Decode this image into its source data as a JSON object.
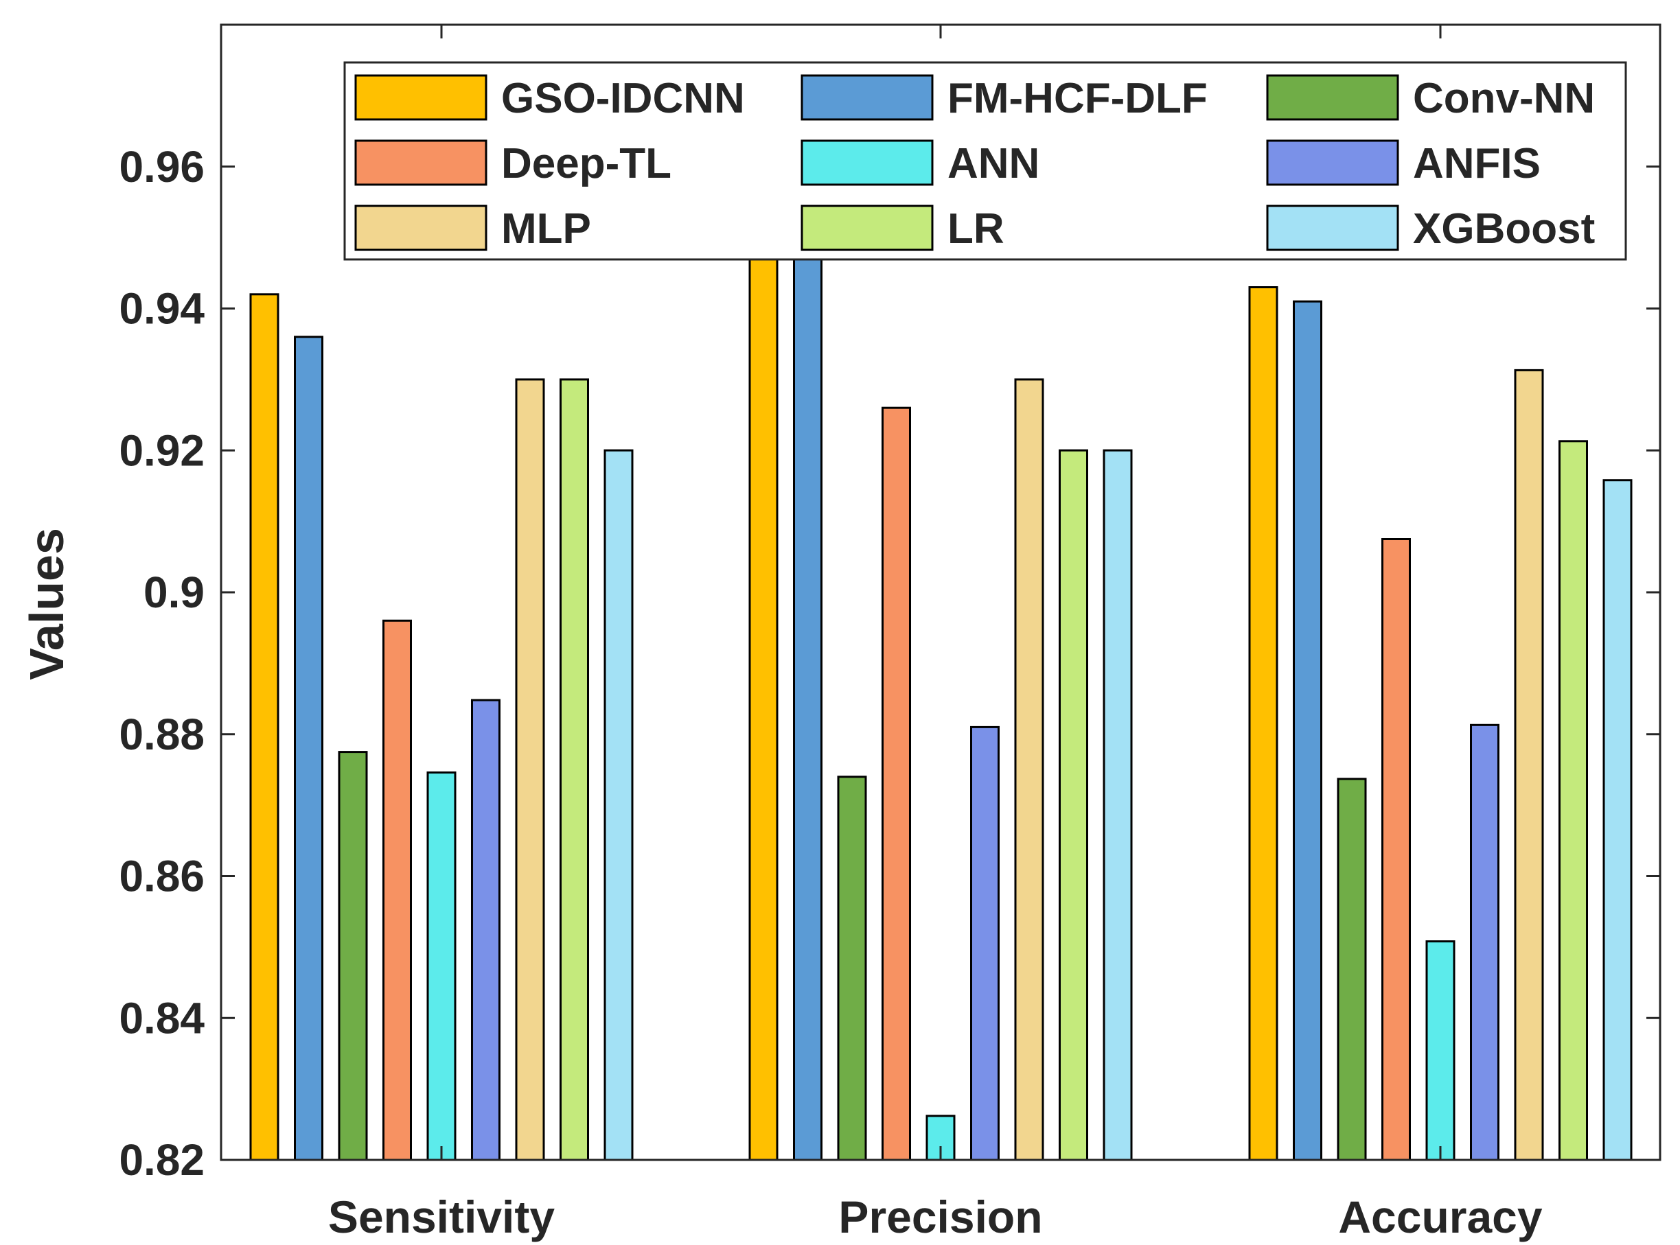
{
  "chart_data": {
    "type": "bar",
    "title": "",
    "xlabel": "",
    "ylabel": "Values",
    "ylim": [
      0.82,
      0.98
    ],
    "yticks": [
      0.82,
      0.84,
      0.86,
      0.88,
      0.9,
      0.92,
      0.94,
      0.96
    ],
    "ytick_labels": [
      "0.82",
      "0.84",
      "0.86",
      "0.88",
      "0.9",
      "0.92",
      "0.94",
      "0.96"
    ],
    "categories": [
      "Sensitivity",
      "Precision",
      "Accuracy"
    ],
    "legend_position": "top-right",
    "series": [
      {
        "name": "GSO-IDCNN",
        "color": "#FFC000",
        "values": [
          0.942,
          0.9495,
          0.943
        ]
      },
      {
        "name": "FM-HCF-DLF",
        "color": "#5B9BD5",
        "values": [
          0.936,
          0.9488,
          0.941
        ]
      },
      {
        "name": "Conv-NN",
        "color": "#70AD47",
        "values": [
          0.8775,
          0.874,
          0.8737
        ]
      },
      {
        "name": "Deep-TL",
        "color": "#F79262",
        "values": [
          0.896,
          0.926,
          0.9075
        ]
      },
      {
        "name": "ANN",
        "color": "#5CEBEB",
        "values": [
          0.8746,
          0.8262,
          0.8508
        ]
      },
      {
        "name": "ANFIS",
        "color": "#7A91E8",
        "values": [
          0.8848,
          0.881,
          0.8813
        ]
      },
      {
        "name": "MLP",
        "color": "#F2D68F",
        "values": [
          0.93,
          0.93,
          0.9313
        ]
      },
      {
        "name": "LR",
        "color": "#C4EA7C",
        "values": [
          0.93,
          0.92,
          0.9213
        ]
      },
      {
        "name": "XGBoost",
        "color": "#A3E1F5",
        "values": [
          0.92,
          0.92,
          0.9158
        ]
      }
    ]
  }
}
